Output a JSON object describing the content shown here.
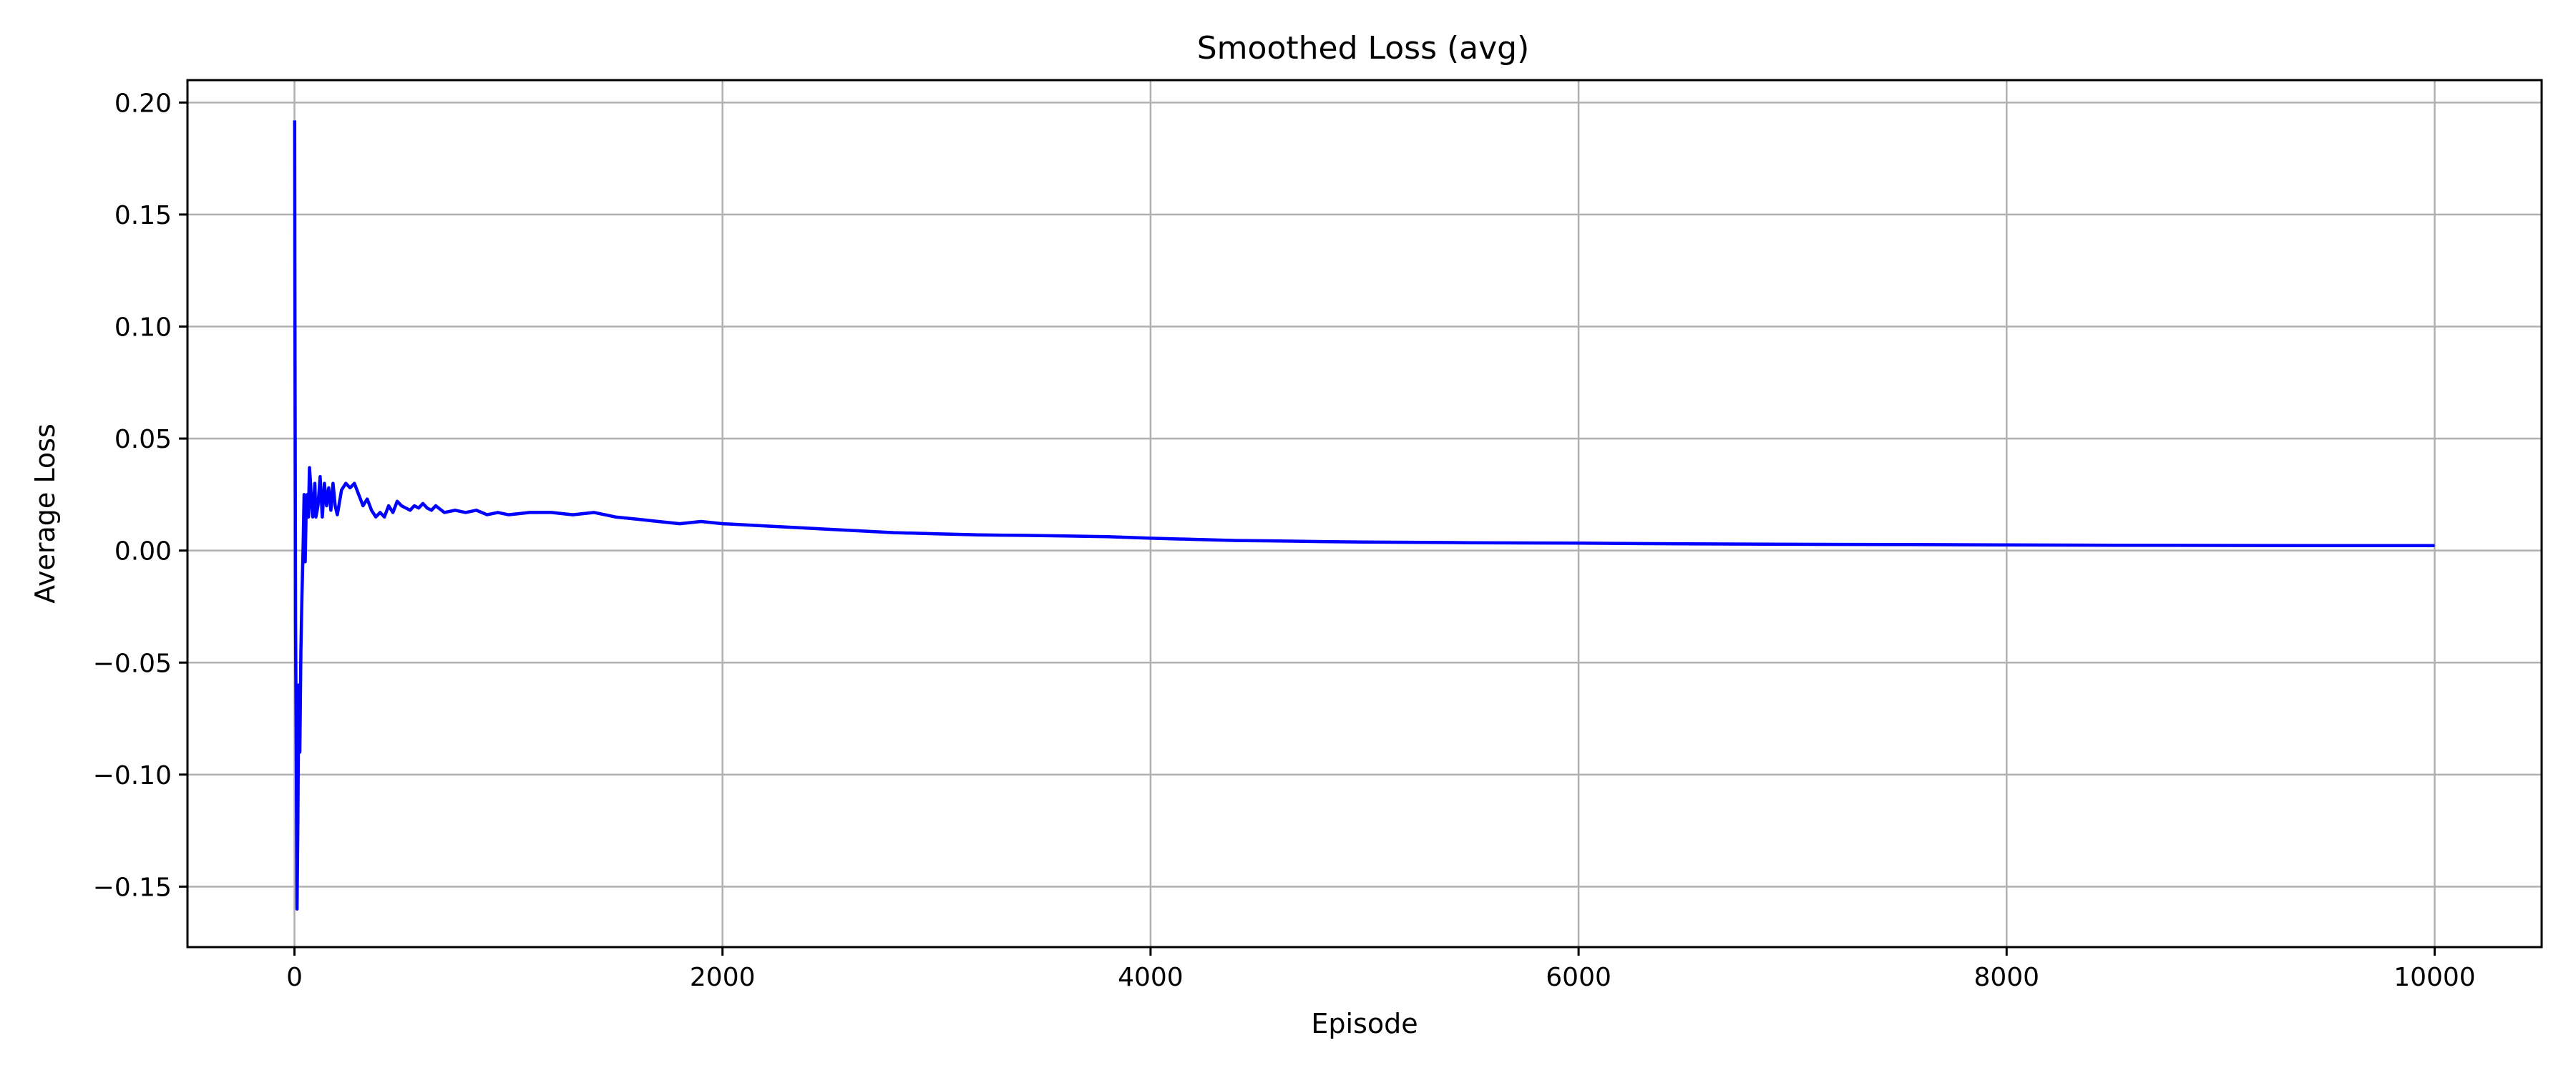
{
  "chart_data": {
    "type": "line",
    "title": "Smoothed Loss (avg)",
    "xlabel": "Episode",
    "ylabel": "Average Loss",
    "xlim": [
      -500,
      10500
    ],
    "ylim": [
      -0.177,
      0.21
    ],
    "x_ticks": [
      0,
      2000,
      4000,
      6000,
      8000,
      10000
    ],
    "x_tick_labels": [
      "0",
      "2000",
      "4000",
      "6000",
      "8000",
      "10000"
    ],
    "y_ticks": [
      -0.15,
      -0.1,
      -0.05,
      0.0,
      0.05,
      0.1,
      0.15,
      0.2
    ],
    "y_tick_labels": [
      "−0.15",
      "−0.10",
      "−0.05",
      "0.00",
      "0.05",
      "0.10",
      "0.15",
      "0.20"
    ],
    "grid": true,
    "legend": false,
    "colors": {
      "line": "#0000ff",
      "grid": "#b0b0b0",
      "axes": "#000000"
    },
    "series": [
      {
        "x": [
          1,
          2,
          3,
          4,
          5,
          8,
          12,
          16,
          20,
          25,
          30,
          35,
          40,
          45,
          50,
          55,
          60,
          65,
          70,
          75,
          80,
          85,
          90,
          95,
          100,
          110,
          120,
          130,
          140,
          150,
          160,
          170,
          180,
          190,
          200,
          220,
          240,
          260,
          280,
          300,
          320,
          340,
          360,
          380,
          400,
          420,
          440,
          460,
          480,
          500,
          520,
          540,
          560,
          580,
          600,
          620,
          640,
          660,
          700,
          750,
          800,
          850,
          900,
          950,
          1000,
          1100,
          1200,
          1300,
          1400,
          1500,
          1600,
          1700,
          1800,
          1900,
          2000,
          2200,
          2400,
          2600,
          2800,
          3000,
          3200,
          3400,
          3600,
          3800,
          4000,
          4200,
          4400,
          4600,
          4800,
          5000,
          5500,
          6000,
          6500,
          7000,
          7500,
          8000,
          8500,
          9000,
          9500,
          10000
        ],
        "y": [
          0.192,
          0.12,
          0.065,
          0.02,
          -0.03,
          -0.08,
          -0.16,
          -0.12,
          -0.06,
          -0.09,
          -0.045,
          -0.02,
          0.0,
          0.025,
          -0.005,
          0.02,
          0.025,
          0.015,
          0.037,
          0.03,
          0.02,
          0.015,
          0.022,
          0.03,
          0.015,
          0.02,
          0.033,
          0.015,
          0.03,
          0.02,
          0.028,
          0.018,
          0.03,
          0.02,
          0.016,
          0.027,
          0.03,
          0.028,
          0.03,
          0.025,
          0.02,
          0.023,
          0.018,
          0.015,
          0.017,
          0.015,
          0.02,
          0.017,
          0.022,
          0.02,
          0.019,
          0.018,
          0.02,
          0.019,
          0.021,
          0.019,
          0.018,
          0.02,
          0.017,
          0.018,
          0.017,
          0.018,
          0.016,
          0.017,
          0.016,
          0.017,
          0.017,
          0.016,
          0.017,
          0.015,
          0.014,
          0.013,
          0.012,
          0.013,
          0.012,
          0.011,
          0.01,
          0.009,
          0.008,
          0.0075,
          0.007,
          0.0068,
          0.0065,
          0.0062,
          0.0055,
          0.005,
          0.0045,
          0.0043,
          0.004,
          0.0038,
          0.0035,
          0.0033,
          0.003,
          0.0028,
          0.0027,
          0.0025,
          0.0024,
          0.0023,
          0.0022,
          0.0022
        ]
      }
    ]
  }
}
